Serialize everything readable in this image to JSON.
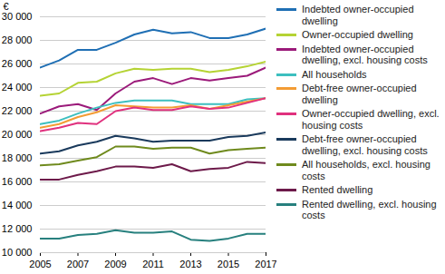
{
  "chart_data": {
    "type": "line",
    "y_label": "€",
    "x": [
      2005,
      2006,
      2007,
      2008,
      2009,
      2010,
      2011,
      2012,
      2013,
      2014,
      2015,
      2016,
      2017
    ],
    "xlim": [
      2005,
      2017
    ],
    "xticks": [
      2005,
      2007,
      2009,
      2011,
      2013,
      2015,
      2017
    ],
    "ylim": [
      10000,
      30000
    ],
    "yticks": [
      {
        "value": 10000,
        "label": "10 000"
      },
      {
        "value": 12000,
        "label": "12 000"
      },
      {
        "value": 14000,
        "label": "14 000"
      },
      {
        "value": 16000,
        "label": "16 000"
      },
      {
        "value": 18000,
        "label": "18 000"
      },
      {
        "value": 20000,
        "label": "20 000"
      },
      {
        "value": 22000,
        "label": "22 000"
      },
      {
        "value": 24000,
        "label": "24 000"
      },
      {
        "value": 26000,
        "label": "26 000"
      },
      {
        "value": 28000,
        "label": "28 000"
      },
      {
        "value": 30000,
        "label": "30 000"
      }
    ],
    "grid": true,
    "legend": "right",
    "series": [
      {
        "name": "Indebted owner-occupied dwelling",
        "color": "#1f6fb4",
        "values": [
          25700,
          26300,
          27200,
          27200,
          27800,
          28500,
          28900,
          28600,
          28700,
          28200,
          28200,
          28500,
          29000
        ]
      },
      {
        "name": "Owner-occupied dwelling",
        "color": "#b5d334",
        "values": [
          23300,
          23500,
          24400,
          24500,
          25200,
          25600,
          25500,
          25600,
          25600,
          25300,
          25500,
          25800,
          26200
        ]
      },
      {
        "name": "Indebted owner-occupied dwelling, excl. housing costs",
        "color": "#9b1a7a",
        "values": [
          21800,
          22400,
          22600,
          22100,
          23500,
          24500,
          24800,
          24300,
          24800,
          24600,
          24800,
          25000,
          25700
        ]
      },
      {
        "name": "All households",
        "color": "#3dbfbf",
        "values": [
          20900,
          21200,
          21800,
          22300,
          22700,
          22900,
          22900,
          22900,
          22600,
          22600,
          22600,
          23000,
          23100
        ]
      },
      {
        "name": "Debt-free owner-occupied dwelling",
        "color": "#f39c34",
        "values": [
          20600,
          20900,
          21500,
          21900,
          22500,
          22400,
          22300,
          22300,
          22500,
          22200,
          22500,
          22800,
          23100
        ]
      },
      {
        "name": "Owner-occupied dwelling, excl. housing costs",
        "color": "#e0317e",
        "values": [
          20300,
          20600,
          21000,
          20900,
          22000,
          22300,
          22100,
          22100,
          22400,
          22200,
          22300,
          22700,
          23100
        ]
      },
      {
        "name": "Debt-free owner-occupied dwelling, excl. housing costs",
        "color": "#1a3a5c",
        "values": [
          18400,
          18600,
          19100,
          19400,
          19900,
          19700,
          19400,
          19500,
          19500,
          19500,
          19800,
          19900,
          20200
        ]
      },
      {
        "name": "All households, excl. housing costs",
        "color": "#6f8a1d",
        "values": [
          17400,
          17500,
          17800,
          18100,
          19000,
          19000,
          18800,
          18900,
          18900,
          18400,
          18700,
          18800,
          18900
        ]
      },
      {
        "name": "Rented dwelling",
        "color": "#6d1a4a",
        "values": [
          16200,
          16200,
          16600,
          16900,
          17300,
          17300,
          17200,
          17500,
          16900,
          17100,
          17200,
          17700,
          17600
        ]
      },
      {
        "name": "Rented dwelling, excl. housing costs",
        "color": "#27807e",
        "values": [
          11200,
          11200,
          11500,
          11600,
          11900,
          11700,
          11700,
          11800,
          11100,
          11000,
          11200,
          11600,
          11600
        ]
      }
    ]
  }
}
